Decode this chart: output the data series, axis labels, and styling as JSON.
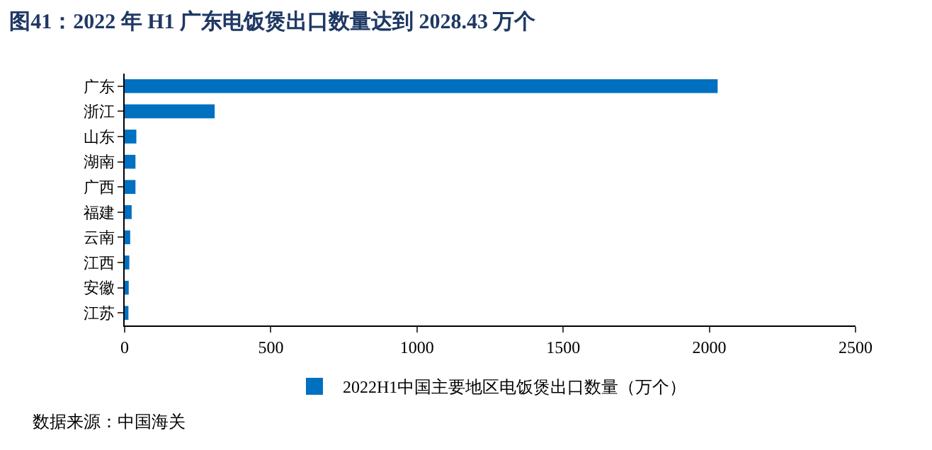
{
  "chart_data": {
    "type": "bar",
    "orientation": "horizontal",
    "title": "图41：2022 年 H1 广东电饭煲出口数量达到 2028.43 万个",
    "categories": [
      "广东",
      "浙江",
      "山东",
      "湖南",
      "广西",
      "福建",
      "云南",
      "江西",
      "安徽",
      "江苏"
    ],
    "series": [
      {
        "name": "2022H1中国主要地区电饭煲出口数量（万个）",
        "color": "#0070c0",
        "values": [
          2028.43,
          308,
          40,
          37,
          37,
          24,
          19,
          16,
          14,
          13
        ]
      }
    ],
    "xlim": [
      0,
      2500
    ],
    "xticks": [
      0,
      500,
      1000,
      1500,
      2000,
      2500
    ],
    "grid": false,
    "legend": "bottom",
    "annotations": [
      "数据来源：中国海关"
    ]
  }
}
